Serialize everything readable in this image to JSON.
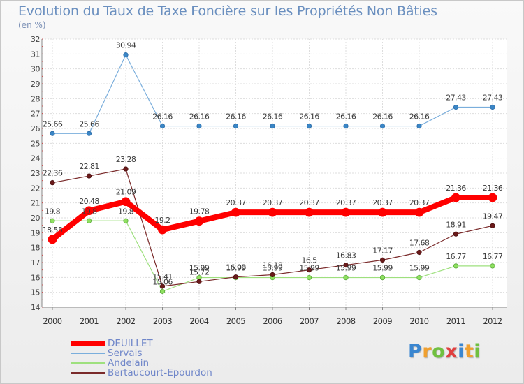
{
  "chart_data": {
    "type": "line",
    "title": "Evolution du Taux de Taxe Foncière sur les Propriétés Non Bâties",
    "subtitle": "(en %)",
    "xlabel": "",
    "ylabel": "",
    "ylim": [
      14,
      32
    ],
    "categories": [
      "2000",
      "2001",
      "2002",
      "2003",
      "2004",
      "2005",
      "2006",
      "2007",
      "2008",
      "2009",
      "2010",
      "2011",
      "2012"
    ],
    "y_ticks": [
      "14",
      "15",
      "16",
      "17",
      "18",
      "19",
      "20",
      "21",
      "22",
      "23",
      "24",
      "25",
      "26",
      "27",
      "28",
      "29",
      "30",
      "31",
      "32"
    ],
    "series": [
      {
        "name": "DEUILLET",
        "color": "#ff0000",
        "values": [
          18.55,
          20.48,
          21.09,
          19.2,
          19.78,
          20.37,
          20.37,
          20.37,
          20.37,
          20.37,
          20.37,
          21.36,
          21.36
        ],
        "labels": [
          "18.55",
          "20.48",
          "21.09",
          "19.2",
          "19.78",
          "20.37",
          "20.37",
          "20.37",
          "20.37",
          "20.37",
          "20.37",
          "21.36",
          "21.36"
        ]
      },
      {
        "name": "Servais",
        "color": "#7aaedc",
        "values": [
          25.66,
          25.66,
          30.94,
          26.16,
          26.16,
          26.16,
          26.16,
          26.16,
          26.16,
          26.16,
          26.16,
          27.43,
          27.43
        ],
        "labels": [
          "25.66",
          "25.66",
          "30.94",
          "26.16",
          "26.16",
          "26.16",
          "26.16",
          "26.16",
          "26.16",
          "26.16",
          "26.16",
          "27.43",
          "27.43"
        ]
      },
      {
        "name": "Andelain",
        "color": "#9ee07e",
        "values": [
          19.8,
          19.8,
          19.8,
          15.06,
          15.99,
          15.99,
          15.99,
          15.99,
          15.99,
          15.99,
          15.99,
          16.77,
          16.77
        ],
        "labels": [
          "19.8",
          "19.8",
          "19.8",
          "15.06",
          "15.99",
          "15.99",
          "15.99",
          "15.99",
          "15.99",
          "15.99",
          "15.99",
          "16.77",
          "16.77"
        ]
      },
      {
        "name": "Bertaucourt-Epourdon",
        "color": "#7a2a2a",
        "values": [
          22.36,
          22.81,
          23.28,
          15.41,
          15.72,
          16.03,
          16.18,
          16.5,
          16.83,
          17.17,
          17.68,
          18.91,
          19.47
        ],
        "labels": [
          "22.36",
          "22.81",
          "23.28",
          "15.41",
          "15.72",
          "16.03",
          "16.18",
          "16.5",
          "16.83",
          "17.17",
          "17.68",
          "18.91",
          "19.47"
        ]
      }
    ],
    "legend": "bottom-left",
    "grid": true
  },
  "logo": {
    "letters": [
      "P",
      "r",
      "o",
      "x",
      "i",
      "t",
      "i"
    ],
    "colors": [
      "#3a86d0",
      "#f0a030",
      "#70c040",
      "#e04040",
      "#3a86d0",
      "#f0a030",
      "#70c040"
    ]
  }
}
